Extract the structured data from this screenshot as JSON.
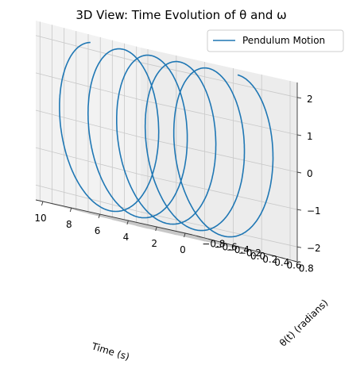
{
  "chart_data": {
    "type": "line",
    "projection": "3d",
    "title": "3D View: Time Evolution of θ and ω",
    "xlabel": "Time (s)",
    "ylabel": "θ(t) (radians)",
    "zlabel": "",
    "xlim": [
      -0.5,
      10.5
    ],
    "ylim": [
      -0.87,
      0.87
    ],
    "zlim": [
      -2.4,
      2.4
    ],
    "x_ticks": [
      0,
      2,
      4,
      6,
      8,
      10
    ],
    "x_tick_labels": [
      "0",
      "2",
      "4",
      "6",
      "8",
      "10"
    ],
    "y_ticks": [
      -0.8,
      -0.6,
      -0.4,
      -0.2,
      0.0,
      0.2,
      0.4,
      0.6,
      0.8
    ],
    "y_tick_labels": [
      "−0.8",
      "−0.6",
      "−0.4",
      "−0.2",
      "0.0",
      "0.2",
      "0.4",
      "0.6",
      "0.8"
    ],
    "z_ticks": [
      -2,
      -1,
      0,
      1,
      2
    ],
    "z_tick_labels": [
      "−2",
      "−1",
      "0",
      "1",
      "2"
    ],
    "grid": true,
    "legend_position": "top-right",
    "series": [
      {
        "name": "Pendulum Motion",
        "color": "#1f77b4",
        "t_range": [
          0,
          10
        ],
        "theta_amplitude": 0.7,
        "omega_amplitude": 2.2,
        "angular_frequency": 3.13
      }
    ]
  }
}
